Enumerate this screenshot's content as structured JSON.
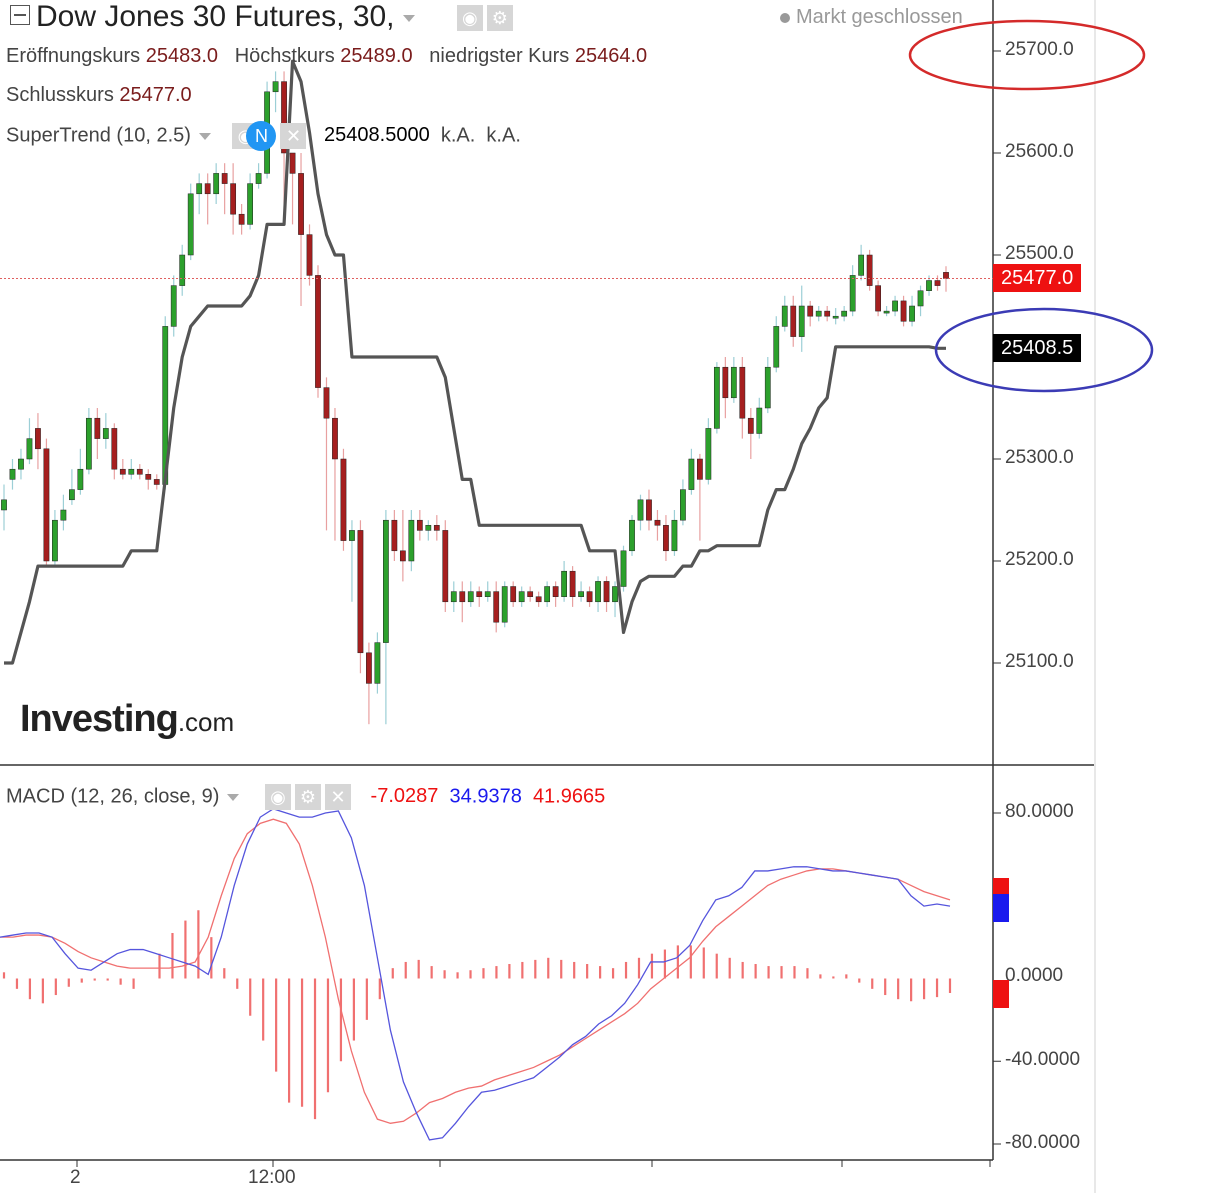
{
  "header": {
    "title": "Dow Jones 30 Futures, 30,",
    "market_status": "Markt geschlossen",
    "open_label": "Eröffnungskurs",
    "open_value": "25483.0",
    "high_label": "Höchstkurs",
    "high_value": "25489.0",
    "low_label": "niedrigster Kurs",
    "low_value": "25464.0",
    "close_label": "Schlusskurs",
    "close_value": "25477.0"
  },
  "supertrend": {
    "label": "SuperTrend (10, 2.5)",
    "value": "25408.5000",
    "na1": "k.A.",
    "na2": "k.A.",
    "badge_icon_text": "N"
  },
  "macd": {
    "label": "MACD (12, 26, close, 9)",
    "hist_value": "-7.0287",
    "macd_value": "34.9378",
    "signal_value": "41.9665"
  },
  "logo": {
    "main": "Investing",
    "suffix": ".com"
  },
  "colors": {
    "up": "#2ca02c",
    "down": "#a51f1f",
    "supertrend": "#555555",
    "macd_line": "#5555dd",
    "signal_line": "#f07070",
    "hist": "#f07070",
    "badge_last": "#ee1111",
    "badge_st": "#000000",
    "badge_macd": "#1a1aee",
    "circle_red": "#d42a2a",
    "circle_blue": "#3b3bb5"
  },
  "chart_data": [
    {
      "type": "candlestick",
      "title": "Dow Jones 30 Futures, 30,",
      "ylim": [
        25000,
        25730
      ],
      "y_ticks": [
        "25700.0",
        "25600.0",
        "25500.0",
        "25300.0",
        "25200.0",
        "25100.0"
      ],
      "x_ticks": [
        "2",
        "12:00"
      ],
      "last_price": "25477.0",
      "supertrend_last": "25408.5",
      "candles": [
        [
          25250,
          25260,
          25230,
          25275
        ],
        [
          25280,
          25290,
          25270,
          25300
        ],
        [
          25290,
          25300,
          25280,
          25310
        ],
        [
          25300,
          25320,
          25295,
          25340
        ],
        [
          25330,
          25310,
          25290,
          25345
        ],
        [
          25310,
          25200,
          25195,
          25320
        ],
        [
          25200,
          25240,
          25195,
          25250
        ],
        [
          25240,
          25250,
          25230,
          25265
        ],
        [
          25260,
          25270,
          25255,
          25290
        ],
        [
          25270,
          25290,
          25265,
          25310
        ],
        [
          25290,
          25340,
          25285,
          25350
        ],
        [
          25340,
          25320,
          25300,
          25350
        ],
        [
          25320,
          25330,
          25310,
          25345
        ],
        [
          25330,
          25290,
          25280,
          25335
        ],
        [
          25290,
          25285,
          25280,
          25300
        ],
        [
          25285,
          25290,
          25280,
          25300
        ],
        [
          25290,
          25285,
          25280,
          25295
        ],
        [
          25285,
          25280,
          25270,
          25290
        ],
        [
          25280,
          25275,
          25270,
          25285
        ],
        [
          25275,
          25430,
          25270,
          25440
        ],
        [
          25430,
          25470,
          25420,
          25480
        ],
        [
          25470,
          25500,
          25460,
          25510
        ],
        [
          25500,
          25560,
          25495,
          25570
        ],
        [
          25560,
          25570,
          25540,
          25580
        ],
        [
          25570,
          25560,
          25530,
          25580
        ],
        [
          25560,
          25580,
          25550,
          25590
        ],
        [
          25580,
          25570,
          25540,
          25590
        ],
        [
          25570,
          25540,
          25520,
          25590
        ],
        [
          25540,
          25530,
          25520,
          25550
        ],
        [
          25530,
          25570,
          25525,
          25580
        ],
        [
          25570,
          25580,
          25565,
          25590
        ],
        [
          25580,
          25660,
          25575,
          25670
        ],
        [
          25660,
          25670,
          25640,
          25680
        ],
        [
          25670,
          25600,
          25540,
          25680
        ],
        [
          25600,
          25580,
          25530,
          25600
        ],
        [
          25580,
          25520,
          25450,
          25600
        ],
        [
          25520,
          25480,
          25470,
          25530
        ],
        [
          25480,
          25370,
          25360,
          25490
        ],
        [
          25370,
          25340,
          25230,
          25380
        ],
        [
          25340,
          25300,
          25220,
          25350
        ],
        [
          25300,
          25220,
          25210,
          25310
        ],
        [
          25220,
          25230,
          25160,
          25240
        ],
        [
          25230,
          25110,
          25090,
          25240
        ],
        [
          25110,
          25080,
          25040,
          25120
        ],
        [
          25080,
          25120,
          25070,
          25130
        ],
        [
          25120,
          25240,
          25040,
          25250
        ],
        [
          25240,
          25210,
          25200,
          25250
        ],
        [
          25210,
          25200,
          25180,
          25250
        ],
        [
          25200,
          25240,
          25190,
          25250
        ],
        [
          25240,
          25230,
          25220,
          25250
        ],
        [
          25230,
          25235,
          25220,
          25240
        ],
        [
          25235,
          25230,
          25220,
          25245
        ],
        [
          25230,
          25160,
          25150,
          25240
        ],
        [
          25160,
          25170,
          25150,
          25180
        ],
        [
          25170,
          25160,
          25140,
          25180
        ],
        [
          25160,
          25170,
          25155,
          25180
        ],
        [
          25170,
          25165,
          25155,
          25175
        ],
        [
          25165,
          25170,
          25160,
          25180
        ],
        [
          25170,
          25140,
          25130,
          25180
        ],
        [
          25140,
          25175,
          25135,
          25180
        ],
        [
          25175,
          25160,
          25155,
          25180
        ],
        [
          25160,
          25170,
          25155,
          25175
        ],
        [
          25170,
          25165,
          25160,
          25175
        ],
        [
          25165,
          25160,
          25155,
          25170
        ],
        [
          25160,
          25175,
          25155,
          25180
        ],
        [
          25175,
          25165,
          25155,
          25180
        ],
        [
          25165,
          25190,
          25160,
          25200
        ],
        [
          25190,
          25165,
          25155,
          25195
        ],
        [
          25165,
          25170,
          25160,
          25180
        ],
        [
          25170,
          25160,
          25155,
          25175
        ],
        [
          25160,
          25180,
          25150,
          25185
        ],
        [
          25180,
          25160,
          25150,
          25185
        ],
        [
          25160,
          25175,
          25145,
          25180
        ],
        [
          25175,
          25210,
          25170,
          25215
        ],
        [
          25210,
          25240,
          25205,
          25245
        ],
        [
          25240,
          25260,
          25230,
          25265
        ],
        [
          25260,
          25240,
          25230,
          25270
        ],
        [
          25240,
          25235,
          25220,
          25250
        ],
        [
          25235,
          25210,
          25200,
          25245
        ],
        [
          25210,
          25240,
          25205,
          25250
        ],
        [
          25240,
          25270,
          25235,
          25280
        ],
        [
          25270,
          25300,
          25265,
          25310
        ],
        [
          25300,
          25280,
          25220,
          25305
        ],
        [
          25280,
          25330,
          25275,
          25340
        ],
        [
          25330,
          25390,
          25325,
          25395
        ],
        [
          25390,
          25360,
          25340,
          25400
        ],
        [
          25360,
          25390,
          25355,
          25400
        ],
        [
          25390,
          25340,
          25320,
          25400
        ],
        [
          25340,
          25325,
          25300,
          25350
        ],
        [
          25325,
          25350,
          25320,
          25360
        ],
        [
          25350,
          25390,
          25345,
          25400
        ],
        [
          25390,
          25430,
          25385,
          25440
        ],
        [
          25430,
          25450,
          25425,
          25460
        ],
        [
          25450,
          25420,
          25410,
          25460
        ],
        [
          25420,
          25450,
          25405,
          25470
        ],
        [
          25450,
          25440,
          25430,
          25455
        ],
        [
          25440,
          25445,
          25435,
          25450
        ],
        [
          25445,
          25440,
          25435,
          25450
        ],
        [
          25440,
          25440,
          25432,
          25448
        ],
        [
          25440,
          25445,
          25435,
          25450
        ],
        [
          25445,
          25480,
          25440,
          25490
        ],
        [
          25480,
          25500,
          25475,
          25510
        ],
        [
          25500,
          25470,
          25465,
          25505
        ],
        [
          25470,
          25445,
          25440,
          25475
        ],
        [
          25445,
          25445,
          25440,
          25450
        ],
        [
          25445,
          25455,
          25440,
          25460
        ],
        [
          25455,
          25435,
          25430,
          25460
        ],
        [
          25435,
          25450,
          25430,
          25460
        ],
        [
          25450,
          25465,
          25440,
          25470
        ],
        [
          25465,
          25475,
          25460,
          25480
        ],
        [
          25475,
          25470,
          25465,
          25480
        ],
        [
          25483,
          25477,
          25464,
          25489
        ]
      ],
      "supertrend": [
        25100,
        25100,
        25130,
        25160,
        25195,
        25195,
        25195,
        25195,
        25195,
        25195,
        25195,
        25195,
        25195,
        25195,
        25195,
        25210,
        25210,
        25210,
        25210,
        25280,
        25350,
        25400,
        25430,
        25440,
        25450,
        25450,
        25450,
        25450,
        25450,
        25460,
        25480,
        25530,
        25530,
        25530,
        25690,
        25670,
        25620,
        25560,
        25520,
        25500,
        25500,
        25400,
        25400,
        25400,
        25400,
        25400,
        25400,
        25400,
        25400,
        25400,
        25400,
        25400,
        25380,
        25330,
        25280,
        25280,
        25235,
        25235,
        25235,
        25235,
        25235,
        25235,
        25235,
        25235,
        25235,
        25235,
        25235,
        25235,
        25235,
        25210,
        25210,
        25210,
        25210,
        25130,
        25160,
        25180,
        25185,
        25185,
        25185,
        25185,
        25195,
        25195,
        25210,
        25210,
        25215,
        25215,
        25215,
        25215,
        25215,
        25215,
        25250,
        25270,
        25270,
        25290,
        25315,
        25330,
        25350,
        25360,
        25410,
        25410,
        25410,
        25410,
        25410,
        25410,
        25410,
        25410,
        25410,
        25410,
        25410,
        25410,
        25408.5,
        25408.5
      ]
    },
    {
      "type": "macd",
      "title": "MACD (12, 26, close, 9)",
      "ylim": [
        -85,
        95
      ],
      "y_ticks": [
        "80.0000",
        "-40.0000",
        "-80.0000"
      ],
      "zero_label": "0.0000",
      "macd": [
        20,
        21,
        22,
        22,
        20,
        12,
        5,
        4,
        8,
        12,
        14,
        14,
        12,
        10,
        8,
        6,
        2,
        20,
        45,
        65,
        78,
        82,
        80,
        78,
        78,
        80,
        81,
        68,
        45,
        10,
        -25,
        -50,
        -65,
        -78,
        -77,
        -70,
        -62,
        -55,
        -54,
        -52,
        -50,
        -48,
        -43,
        -38,
        -32,
        -28,
        -22,
        -18,
        -12,
        -3,
        8,
        8,
        10,
        16,
        28,
        38,
        40,
        44,
        52,
        52,
        53,
        54,
        54,
        53,
        52,
        52,
        51,
        50,
        49,
        48,
        40,
        35,
        36,
        35
      ],
      "signal": [
        20,
        20,
        21,
        21,
        20,
        17,
        13,
        10,
        8,
        6,
        5,
        5,
        5,
        5,
        6,
        8,
        20,
        40,
        58,
        70,
        75,
        77,
        75,
        65,
        45,
        20,
        -10,
        -35,
        -55,
        -68,
        -70,
        -69,
        -65,
        -60,
        -58,
        -55,
        -53,
        -52,
        -49,
        -47,
        -45,
        -43,
        -40,
        -37,
        -33,
        -29,
        -25,
        -21,
        -17,
        -12,
        -5,
        0,
        5,
        10,
        18,
        25,
        30,
        35,
        40,
        45,
        48,
        50,
        52,
        53,
        53,
        52,
        51,
        50,
        49,
        48,
        45,
        42,
        40,
        38
      ],
      "histogram": [
        3,
        -5,
        -10,
        -12,
        -8,
        -4,
        -2,
        -1,
        -1,
        -3,
        -5,
        0,
        12,
        22,
        28,
        33,
        20,
        5,
        -5,
        -18,
        -30,
        -45,
        -60,
        -62,
        -68,
        -55,
        -40,
        -30,
        -20,
        -10,
        5,
        8,
        9,
        6,
        4,
        3,
        4,
        5,
        6,
        7,
        8,
        9,
        10,
        9,
        8,
        7,
        6,
        5,
        8,
        10,
        12,
        14,
        16,
        16,
        15,
        12,
        10,
        8,
        7,
        6,
        6,
        6,
        5,
        2,
        1,
        2,
        -2,
        -5,
        -8,
        -10,
        -11,
        -10,
        -9,
        -7
      ]
    }
  ]
}
